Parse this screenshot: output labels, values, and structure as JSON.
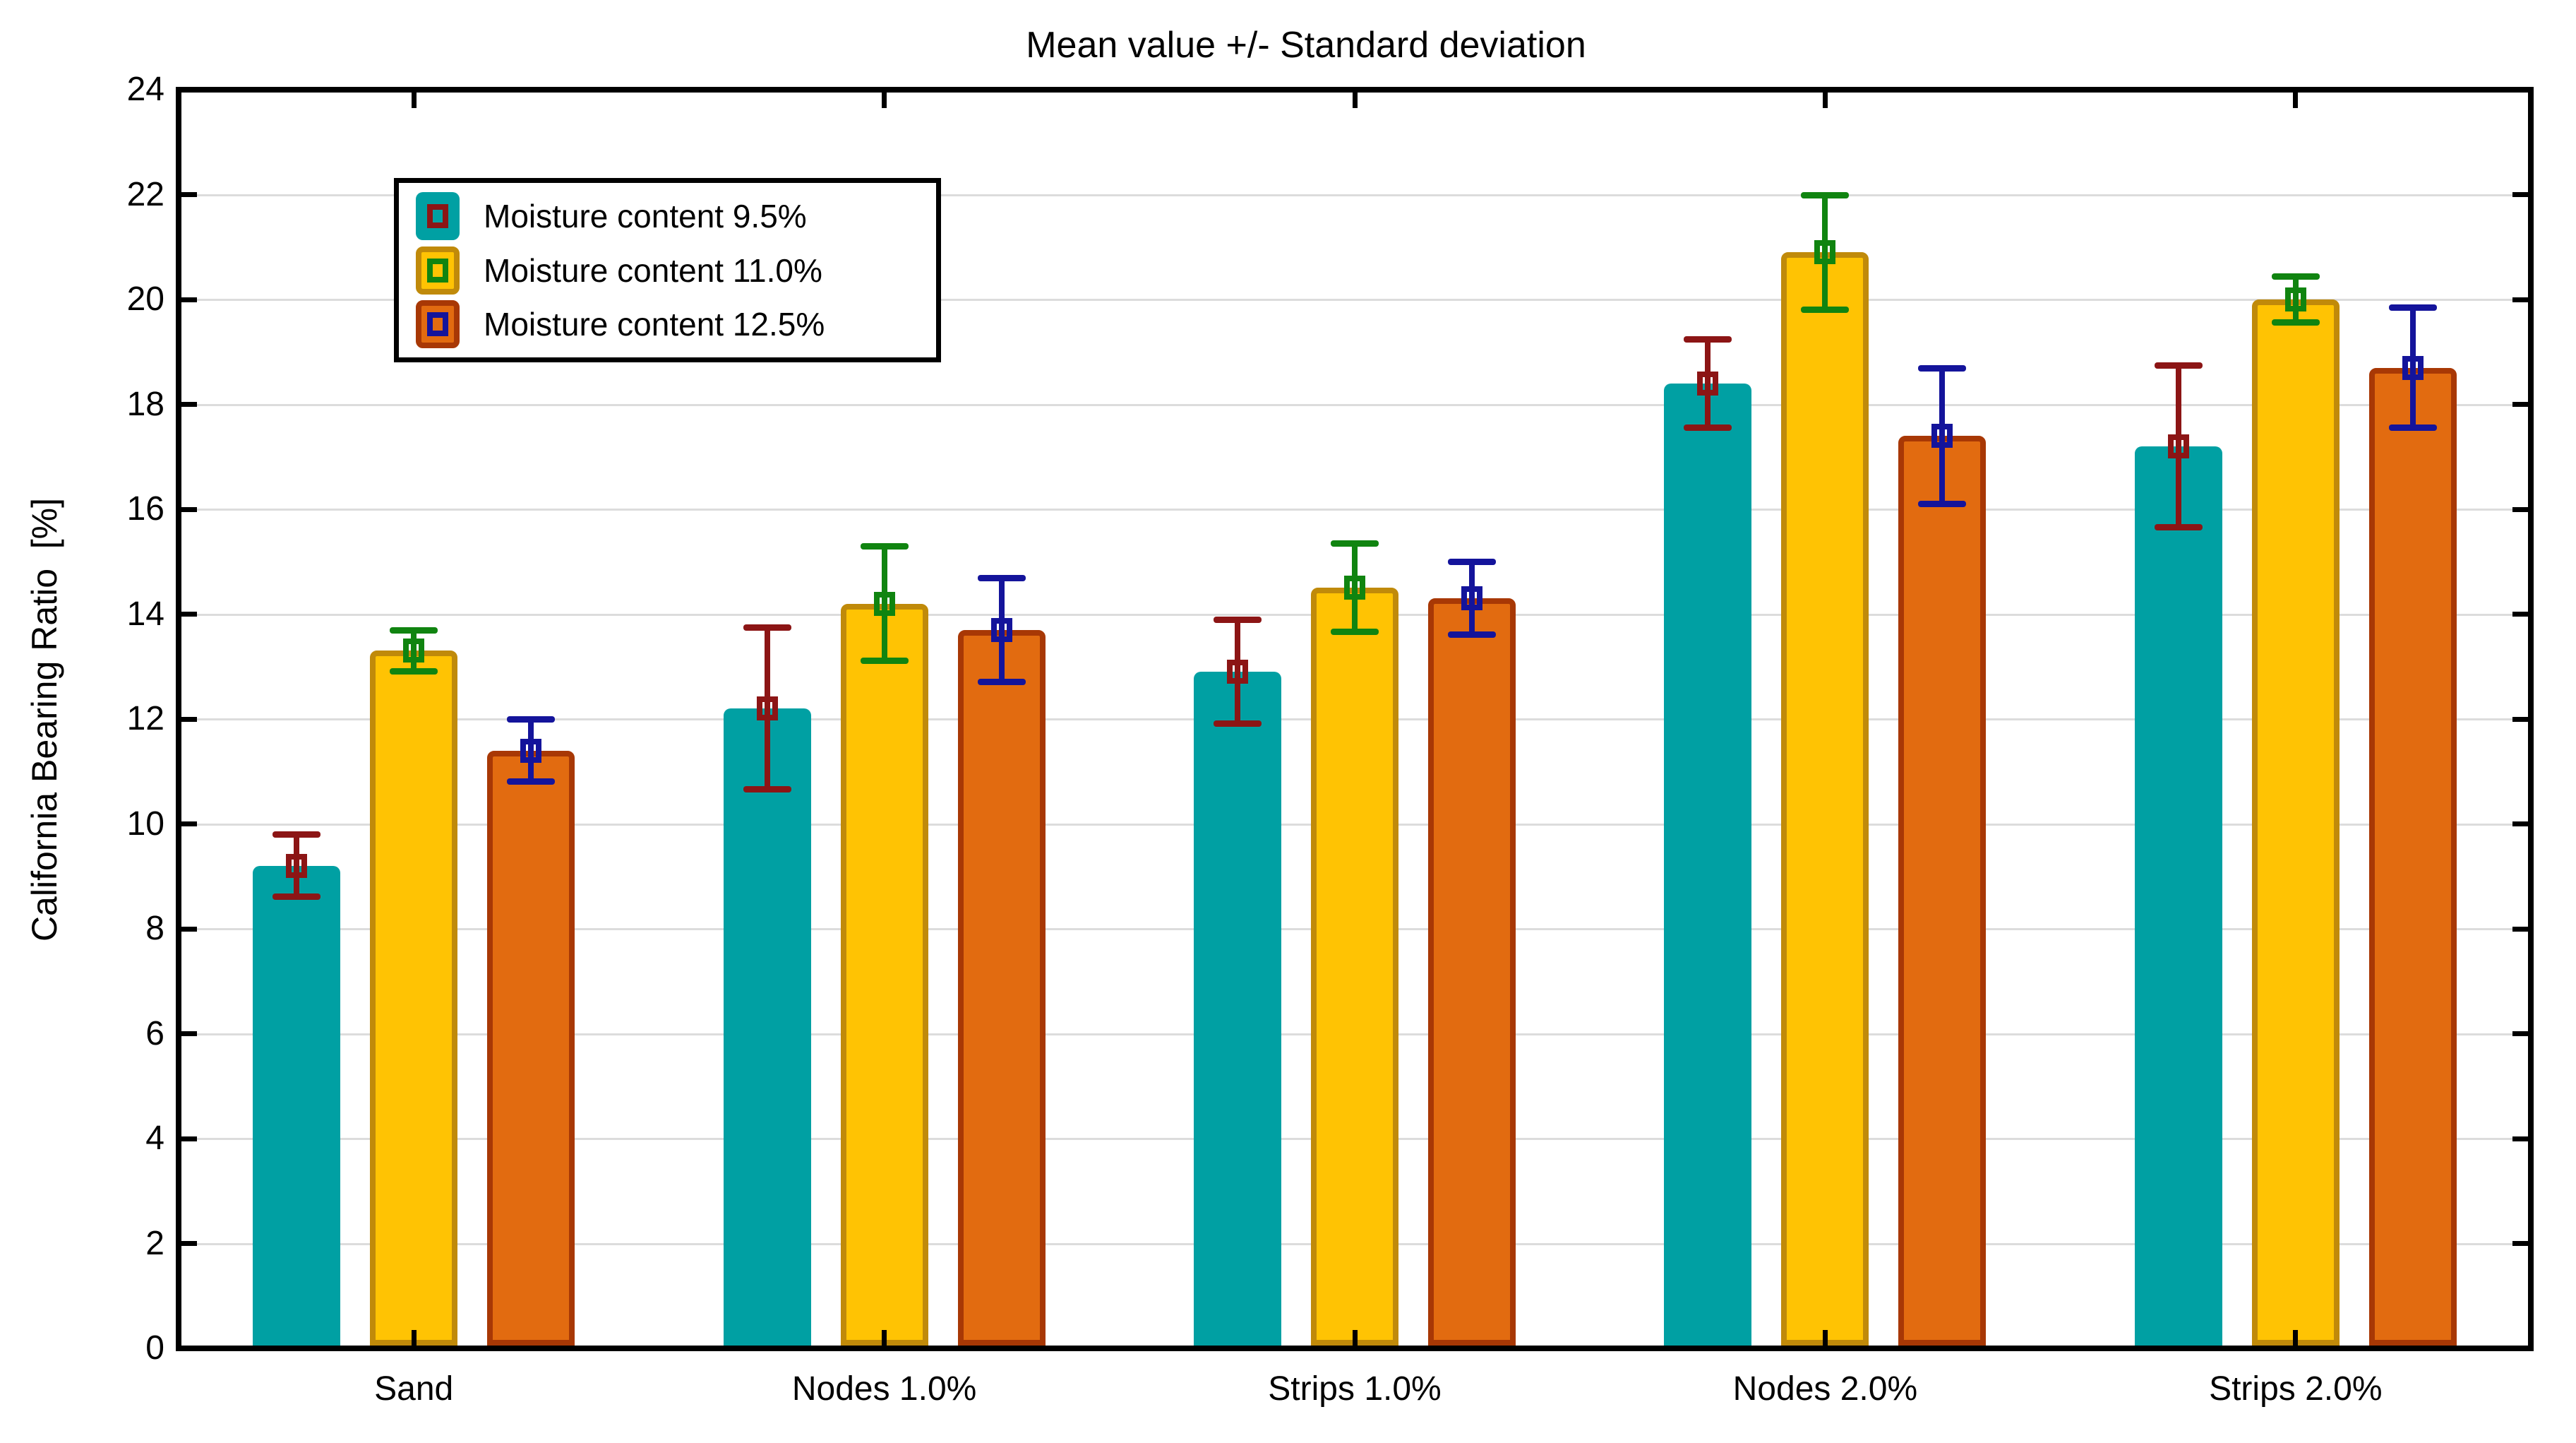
{
  "chart_data": {
    "type": "bar",
    "title": "Mean value +/- Standard deviation",
    "xlabel": "",
    "ylabel": "California Bearing Ratio  [%]",
    "ylim": [
      0,
      24
    ],
    "ytick_step": 2,
    "grid": "horizontal",
    "grid_color": "#DCDCDC",
    "frame_color": "#000000",
    "background_color": "#ffffff",
    "legend_position": "top-left",
    "error_bar_style": "mean +/- standard deviation, open square marker at mean",
    "categories": [
      "Sand",
      "Nodes 1.0%",
      "Strips 1.0%",
      "Nodes 2.0%",
      "Strips 2.0%"
    ],
    "series": [
      {
        "name": "Moisture content 9.5%",
        "bar_color": "#00A0A3",
        "bar_border_color": "#00A0A3",
        "error_color": "#8C1515",
        "means": [
          9.2,
          12.2,
          12.9,
          18.4,
          17.2
        ],
        "std_devs": [
          0.6,
          1.55,
          1.0,
          0.85,
          1.55
        ]
      },
      {
        "name": "Moisture content 11.0%",
        "bar_color": "#FFC303",
        "bar_border_color": "#C08A0A",
        "error_color": "#108410",
        "means": [
          13.3,
          14.2,
          14.5,
          20.9,
          20.0
        ],
        "std_devs": [
          0.4,
          1.1,
          0.85,
          1.1,
          0.45
        ]
      },
      {
        "name": "Moisture content 12.5%",
        "bar_color": "#E26B10",
        "bar_border_color": "#A83805",
        "error_color": "#14149B",
        "means": [
          11.4,
          13.7,
          14.3,
          17.4,
          18.7
        ],
        "std_devs": [
          0.6,
          1.0,
          0.7,
          1.3,
          1.15
        ]
      }
    ]
  }
}
